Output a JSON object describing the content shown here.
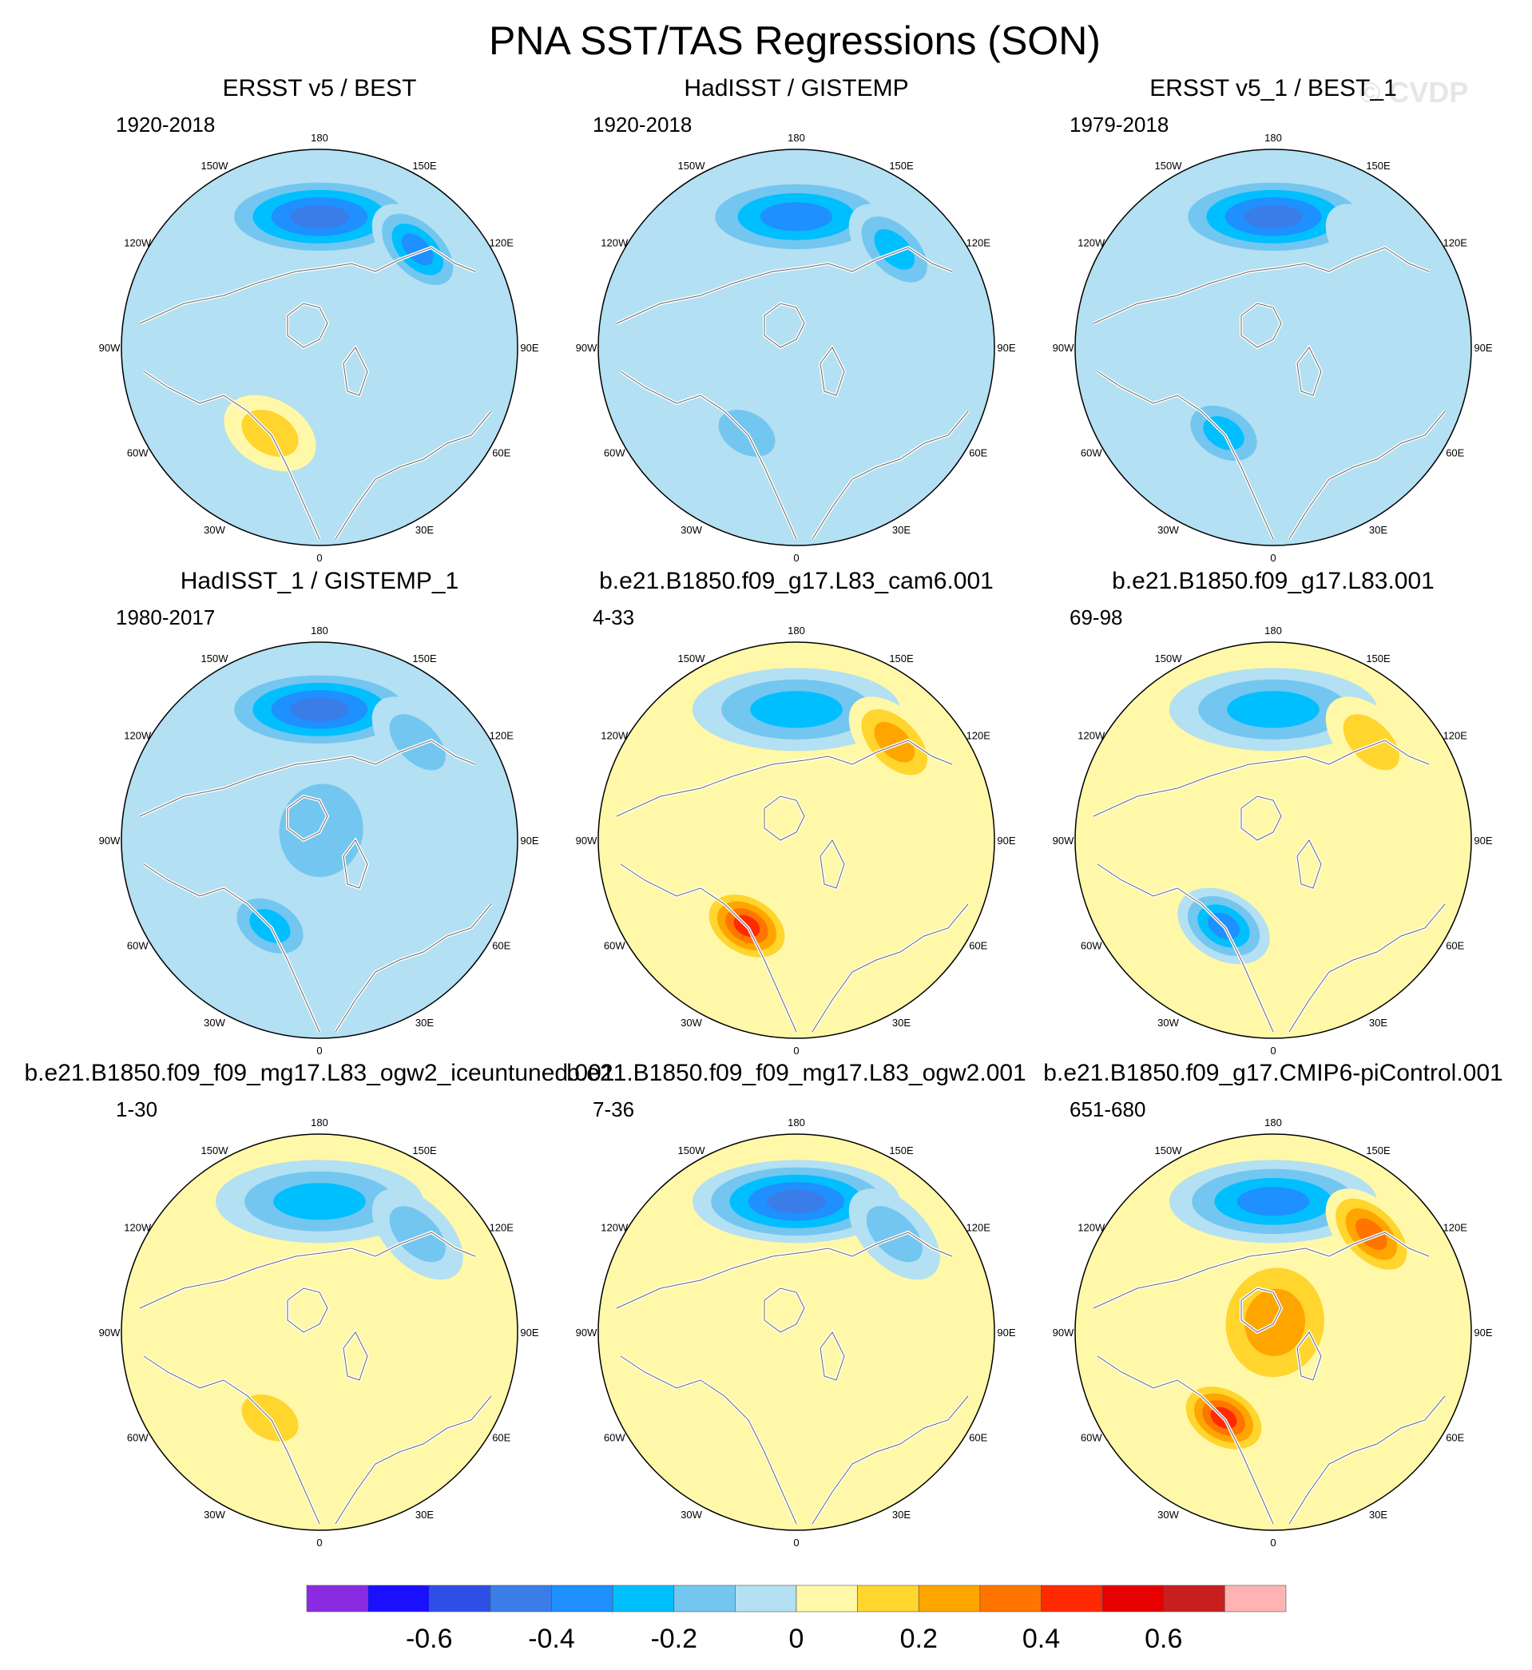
{
  "figure": {
    "title": "PNA SST/TAS Regressions (SON)",
    "watermark": "© CVDP"
  },
  "chart_data": {
    "type": "heatmap",
    "projection": "north-polar-stereographic",
    "title": "PNA SST/TAS Regressions (SON)",
    "longitude_labels": [
      "180",
      "150E",
      "120E",
      "90E",
      "60E",
      "30E",
      "0",
      "30W",
      "60W",
      "90W",
      "120W",
      "150W"
    ],
    "colorbar": {
      "levels": [
        -0.7,
        -0.6,
        -0.5,
        -0.4,
        -0.3,
        -0.2,
        -0.1,
        0,
        0.1,
        0.2,
        0.3,
        0.4,
        0.5,
        0.6,
        0.7
      ],
      "tick_labels": [
        "-0.6",
        "-0.4",
        "-0.2",
        "0",
        "0.2",
        "0.4",
        "0.6"
      ],
      "colors": [
        "#8a2be2",
        "#1a0fff",
        "#2d4fe6",
        "#3b7de8",
        "#1e90ff",
        "#00bfff",
        "#73c6f0",
        "#b3e0f2",
        "#fff8a8",
        "#ffd52e",
        "#ffa500",
        "#ff7500",
        "#ff2a00",
        "#e60000",
        "#c81e1e",
        "#ffb3b3"
      ]
    },
    "panels": [
      {
        "title": "ERSST v5 / BEST",
        "period": "1920-2018",
        "pattern": {
          "aleutian": -0.5,
          "north_atlantic": 0.2,
          "siberia": -0.4,
          "arctic": -0.1
        }
      },
      {
        "title": "HadISST / GISTEMP",
        "period": "1920-2018",
        "pattern": {
          "aleutian": -0.4,
          "north_atlantic": -0.2,
          "siberia": -0.3,
          "arctic": -0.1
        }
      },
      {
        "title": "ERSST v5_1 / BEST_1",
        "period": "1979-2018",
        "pattern": {
          "aleutian": -0.5,
          "north_atlantic": -0.3,
          "siberia": -0.1,
          "arctic": -0.1
        }
      },
      {
        "title": "HadISST_1 / GISTEMP_1",
        "period": "1980-2017",
        "pattern": {
          "aleutian": -0.5,
          "north_atlantic": -0.3,
          "siberia": -0.2,
          "arctic": -0.2
        }
      },
      {
        "title": "b.e21.B1850.f09_g17.L83_cam6.001",
        "period": "4-33",
        "pattern": {
          "aleutian": -0.3,
          "north_atlantic": 0.5,
          "siberia": 0.3,
          "arctic": 0.1
        }
      },
      {
        "title": "b.e21.B1850.f09_g17.L83.001",
        "period": "69-98",
        "pattern": {
          "aleutian": -0.3,
          "north_atlantic": -0.4,
          "siberia": 0.2,
          "arctic": 0.1
        }
      },
      {
        "title": "b.e21.B1850.f09_f09_mg17.L83_ogw2_iceuntuned.001",
        "period": "1-30",
        "pattern": {
          "aleutian": -0.3,
          "north_atlantic": 0.2,
          "siberia": -0.2,
          "arctic": 0.1
        }
      },
      {
        "title": "b.e21.B1850.f09_f09_mg17.L83_ogw2.001",
        "period": "7-36",
        "pattern": {
          "aleutian": -0.5,
          "north_atlantic": 0.1,
          "siberia": -0.2,
          "arctic": 0.1
        }
      },
      {
        "title": "b.e21.B1850.f09_g17.CMIP6-piControl.001",
        "period": "651-680",
        "pattern": {
          "aleutian": -0.4,
          "north_atlantic": 0.5,
          "siberia": 0.4,
          "arctic": 0.3
        }
      }
    ]
  }
}
